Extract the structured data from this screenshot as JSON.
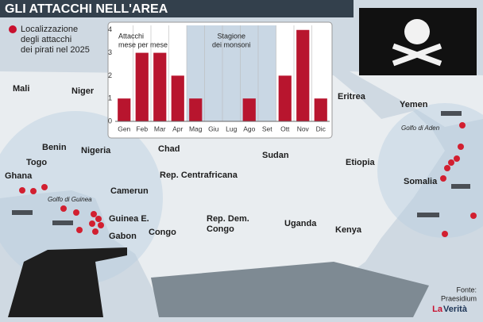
{
  "title": "GLI ATTACCHI NELL'AREA",
  "legend": {
    "lines": [
      "Localizzazione",
      "degli attacchi",
      "dei pirati nel 2025"
    ]
  },
  "chart_data": {
    "type": "bar",
    "y_label": {
      "lines": [
        "Attacchi",
        "mese per mese"
      ]
    },
    "annotation": {
      "lines": [
        "Stagione",
        "dei monsoni"
      ]
    },
    "shaded": [
      "Mag",
      "Set"
    ],
    "categories": [
      "Gen",
      "Feb",
      "Mar",
      "Apr",
      "Mag",
      "Giu",
      "Lug",
      "Ago",
      "Set",
      "Ott",
      "Nov",
      "Dic"
    ],
    "values": [
      1,
      3,
      3,
      2,
      1,
      0,
      0,
      1,
      0,
      2,
      4,
      1
    ],
    "color": "#b8152e",
    "ylim": [
      0,
      4.2
    ],
    "yticks": [
      0,
      1,
      2,
      3,
      4
    ],
    "grid": false
  },
  "map": {
    "labels": [
      "Mali",
      "Niger",
      "Eritrea",
      "Yemen",
      "Benin",
      "Nigeria",
      "Chad",
      "Sudan",
      "Togo",
      "Etiopia",
      "Ghana",
      "Rep. Centrafricana",
      "Somalia",
      "Camerun",
      "Guinea E.",
      "Uganda",
      "Congo",
      "Kenya",
      "Gabon"
    ],
    "gulfs": [
      "Golfo di Aden",
      "Golfo di Guinea"
    ],
    "multi": {
      "lines": [
        "Rep. Dem.",
        "Congo"
      ]
    }
  },
  "source": {
    "lines": [
      "Fonte:",
      "Praesidium"
    ],
    "brand": [
      "La",
      "Verità"
    ]
  }
}
